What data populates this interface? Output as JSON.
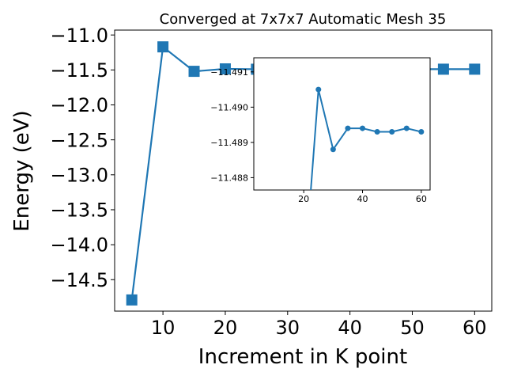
{
  "chart_data": [
    {
      "type": "line",
      "title": "Converged at 7x7x7 Automatic Mesh 35",
      "xlabel": "Increment in K point",
      "ylabel": "Energy (eV)",
      "xlim": [
        2.25,
        62.75
      ],
      "ylim": [
        -14.95,
        -10.93
      ],
      "xticks": [
        10,
        20,
        30,
        40,
        50,
        60
      ],
      "xtick_labels": [
        "10",
        "20",
        "30",
        "40",
        "50",
        "60"
      ],
      "yticks": [
        -11.0,
        -11.5,
        -12.0,
        -12.5,
        -13.0,
        -13.5,
        -14.0,
        -14.5
      ],
      "ytick_labels": [
        "−11.0",
        "−11.5",
        "−12.0",
        "−12.5",
        "−13.0",
        "−13.5",
        "−14.0",
        "−14.5"
      ],
      "grid": false,
      "marker": "square",
      "color": "#1f77b4",
      "series": [
        {
          "x": [
            5,
            10,
            15,
            20,
            25,
            30,
            35,
            40,
            45,
            50,
            55,
            60
          ],
          "y": [
            -14.79,
            -11.17,
            -11.52,
            -11.485,
            -11.49,
            -11.4888,
            -11.4894,
            -11.4894,
            -11.4893,
            -11.4893,
            -11.4894,
            -11.4893
          ]
        }
      ]
    },
    {
      "type": "line",
      "title": "",
      "xlabel": "",
      "ylabel": "",
      "xlim": [
        3.0,
        63.0
      ],
      "ylim": [
        -11.4914,
        -11.48765
      ],
      "y_inverted": true,
      "xticks": [
        20,
        40,
        60
      ],
      "xtick_labels": [
        "20",
        "40",
        "60"
      ],
      "yticks": [
        -11.491,
        -11.49,
        -11.489,
        -11.488
      ],
      "ytick_labels": [
        "−11.491",
        "−11.490",
        "−11.489",
        "−11.488"
      ],
      "grid": false,
      "marker": "circle",
      "color": "#1f77b4",
      "series": [
        {
          "x": [
            20,
            25,
            30,
            35,
            40,
            45,
            50,
            55,
            60
          ],
          "y": [
            -11.485,
            -11.4905,
            -11.4888,
            -11.4894,
            -11.4894,
            -11.4893,
            -11.4893,
            -11.4894,
            -11.4893
          ]
        }
      ]
    }
  ]
}
